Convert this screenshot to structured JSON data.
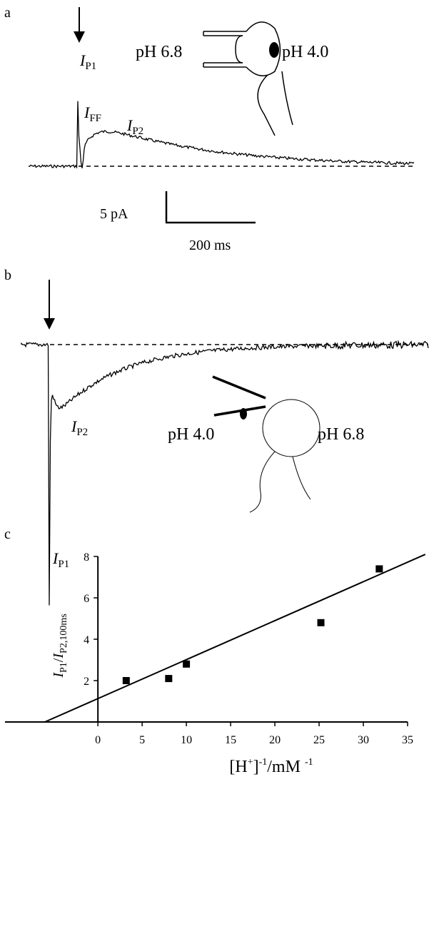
{
  "panel_a": {
    "label": "a",
    "left_ph": "pH 6.8",
    "right_ph": "pH 4.0",
    "peaks": [
      {
        "symbol": "I",
        "sub": "P1"
      },
      {
        "symbol": "I",
        "sub": "FF"
      },
      {
        "symbol": "I",
        "sub": "P2"
      }
    ],
    "scale_y": "5 pA",
    "scale_x": "200 ms"
  },
  "panel_b": {
    "label": "b",
    "left_ph": "pH 4.0",
    "right_ph": "pH 6.8",
    "peaks": [
      {
        "symbol": "I",
        "sub": "P2"
      },
      {
        "symbol": "I",
        "sub": "P1"
      }
    ]
  },
  "chart_data": {
    "type": "scatter",
    "panel_label": "c",
    "ylabel": [
      "I",
      "P1",
      "/",
      "I",
      "P2,100ms"
    ],
    "xlabel": [
      "[H",
      "+",
      "]",
      "-1",
      "/mM",
      "-1"
    ],
    "x": [
      3.2,
      8,
      10,
      25.2,
      31.8
    ],
    "values": [
      2.0,
      2.1,
      2.8,
      4.8,
      7.4
    ],
    "color": "#000000",
    "fit_line": {
      "x": [
        -6,
        37
      ],
      "y": [
        0,
        8.1
      ]
    },
    "xlim": [
      -10.5,
      35
    ],
    "ylim": [
      0,
      8
    ],
    "xticks": [
      0,
      5,
      10,
      15,
      20,
      25,
      30,
      35
    ],
    "yticks": [
      2,
      4,
      6,
      8
    ]
  }
}
